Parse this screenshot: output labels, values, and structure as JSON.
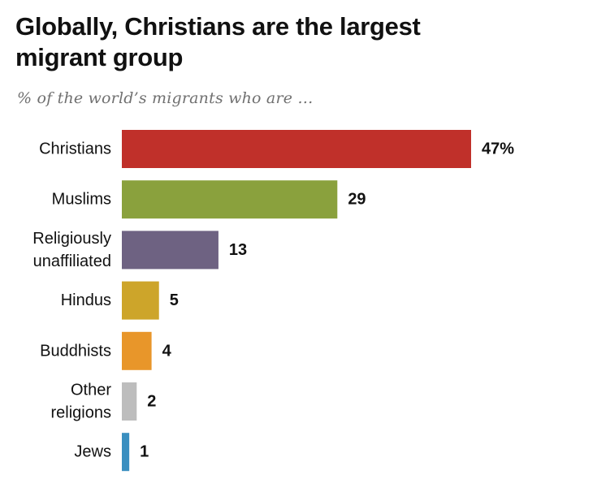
{
  "title_lines": [
    "Globally, Christians are the largest",
    "migrant group"
  ],
  "subtitle": "% of the world’s migrants who are …",
  "chart_data": {
    "type": "bar",
    "orientation": "horizontal",
    "title": "Globally, Christians are the largest migrant group",
    "subtitle": "% of the world’s migrants who are …",
    "categories": [
      [
        "Christians"
      ],
      [
        "Muslims"
      ],
      [
        "Religiously",
        "unaffiliated"
      ],
      [
        "Hindus"
      ],
      [
        "Buddhists"
      ],
      [
        "Other",
        "religions"
      ],
      [
        "Jews"
      ]
    ],
    "values": [
      47,
      29,
      13,
      5,
      4,
      2,
      1
    ],
    "value_labels": [
      "47%",
      "29",
      "13",
      "5",
      "4",
      "2",
      "1"
    ],
    "colors": [
      "#c0302a",
      "#8aa13d",
      "#6e6282",
      "#cda52a",
      "#e8962a",
      "#bdbdbd",
      "#3a8fc0"
    ],
    "xlabel": "",
    "ylabel": "",
    "xlim": [
      0,
      47
    ]
  }
}
